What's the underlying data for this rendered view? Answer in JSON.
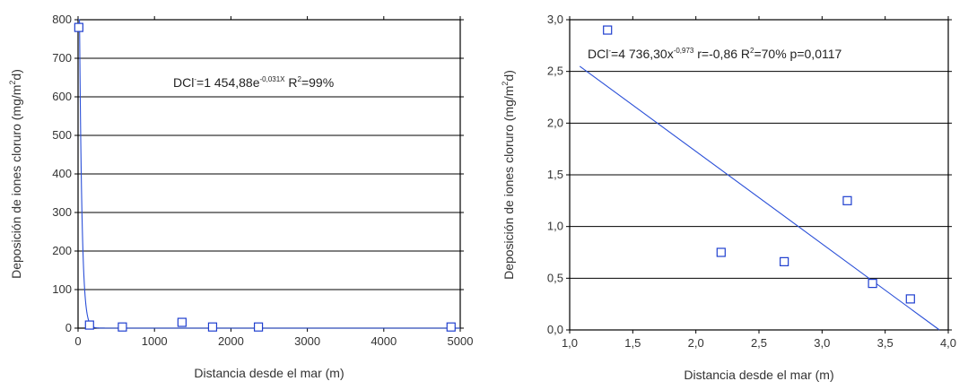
{
  "chart_data": [
    {
      "type": "scatter",
      "title": "",
      "xlabel": "Distancia desde el mar (m)",
      "ylabel_parts": [
        "Deposición de iones cloruro (mg/m",
        "2",
        "d)"
      ],
      "xlim": [
        0,
        5000
      ],
      "ylim": [
        0,
        800
      ],
      "xticks": [
        0,
        1000,
        2000,
        3000,
        4000,
        5000
      ],
      "xtick_labels": [
        "0",
        "1000",
        "2000",
        "3000",
        "4000",
        "5000"
      ],
      "yticks": [
        0,
        100,
        200,
        300,
        400,
        500,
        600,
        700,
        800
      ],
      "ytick_labels": [
        "0",
        "100",
        "200",
        "300",
        "400",
        "500",
        "600",
        "700",
        "800"
      ],
      "grid": "horizontal",
      "colors": {
        "marker": "#1f3fcf",
        "fit": "#2a4fd8",
        "grid": "#000000",
        "frame": "#000000"
      },
      "points": [
        {
          "x": 10,
          "y": 780
        },
        {
          "x": 150,
          "y": 8
        },
        {
          "x": 580,
          "y": 3
        },
        {
          "x": 1360,
          "y": 15
        },
        {
          "x": 1760,
          "y": 3
        },
        {
          "x": 2360,
          "y": 3
        },
        {
          "x": 4880,
          "y": 3
        }
      ],
      "fit": {
        "model": "exponential",
        "a": 1454.88,
        "b": 0.031
      },
      "annotation": {
        "parts": [
          {
            "t": "DCl"
          },
          {
            "t": "-",
            "sup": true
          },
          {
            "t": "=1 454,88e"
          },
          {
            "t": "-0,031X",
            "sup": true
          },
          {
            "t": "  R"
          },
          {
            "t": "2",
            "sup": true
          },
          {
            "t": "=99%"
          }
        ]
      }
    },
    {
      "type": "scatter",
      "title": "",
      "xlabel": "Distancia desde el mar (m)",
      "ylabel_parts": [
        "Deposición de iones cloruro (mg/m",
        "2",
        "d)"
      ],
      "xlim": [
        1.0,
        4.0
      ],
      "ylim": [
        0.0,
        3.0
      ],
      "xticks": [
        1.0,
        1.5,
        2.0,
        2.5,
        3.0,
        3.5,
        4.0
      ],
      "xtick_labels": [
        "1,0",
        "1,5",
        "2,0",
        "2,5",
        "3,0",
        "3,5",
        "4,0"
      ],
      "yticks": [
        0.0,
        0.5,
        1.0,
        1.5,
        2.0,
        2.5,
        3.0
      ],
      "ytick_labels": [
        "0,0",
        "0,5",
        "1,0",
        "1,5",
        "2,0",
        "2,5",
        "3,0"
      ],
      "grid": "horizontal",
      "colors": {
        "marker": "#1f3fcf",
        "fit": "#2a4fd8",
        "grid": "#000000",
        "frame": "#000000"
      },
      "points": [
        {
          "x": 1.3,
          "y": 2.9
        },
        {
          "x": 2.2,
          "y": 0.75
        },
        {
          "x": 2.7,
          "y": 0.66
        },
        {
          "x": 3.2,
          "y": 1.25
        },
        {
          "x": 3.4,
          "y": 0.45
        },
        {
          "x": 3.7,
          "y": 0.3
        }
      ],
      "fit": {
        "model": "linear",
        "x0": 1.08,
        "y0": 2.55,
        "x1": 3.93,
        "y1": 0.0
      },
      "annotation": {
        "parts": [
          {
            "t": "DCl"
          },
          {
            "t": "-",
            "sup": true
          },
          {
            "t": "=4 736,30x"
          },
          {
            "t": "-0,973",
            "sup": true
          },
          {
            "t": " r=-0,86 R"
          },
          {
            "t": "2",
            "sup": true
          },
          {
            "t": "=70% p=0,0117"
          }
        ]
      }
    }
  ]
}
